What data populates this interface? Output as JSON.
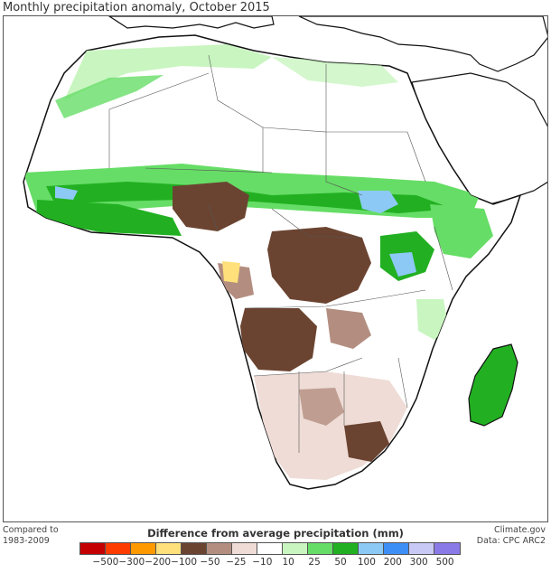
{
  "title": "Monthly precipitation anomaly, October 2015",
  "compared_to": {
    "line1": "Compared to",
    "line2": "1983-2009"
  },
  "credits": {
    "line1": "Climate.gov",
    "line2": "Data: CPC ARC2"
  },
  "legend": {
    "title": "Difference from average precipitation (mm)",
    "colors": [
      "#c40000",
      "#ff3c00",
      "#ff9900",
      "#ffe07a",
      "#6b4431",
      "#b38e80",
      "#efdcd6",
      "#ffffff",
      "#c9f5c0",
      "#66dd66",
      "#22b022",
      "#8dc9f5",
      "#3d8ff5",
      "#c9c9f5",
      "#8a7ae8"
    ],
    "labels": [
      "−500",
      "−300",
      "−200",
      "−100",
      "−50",
      "−25",
      "−10",
      "10",
      "25",
      "50",
      "100",
      "200",
      "300",
      "500"
    ]
  }
}
